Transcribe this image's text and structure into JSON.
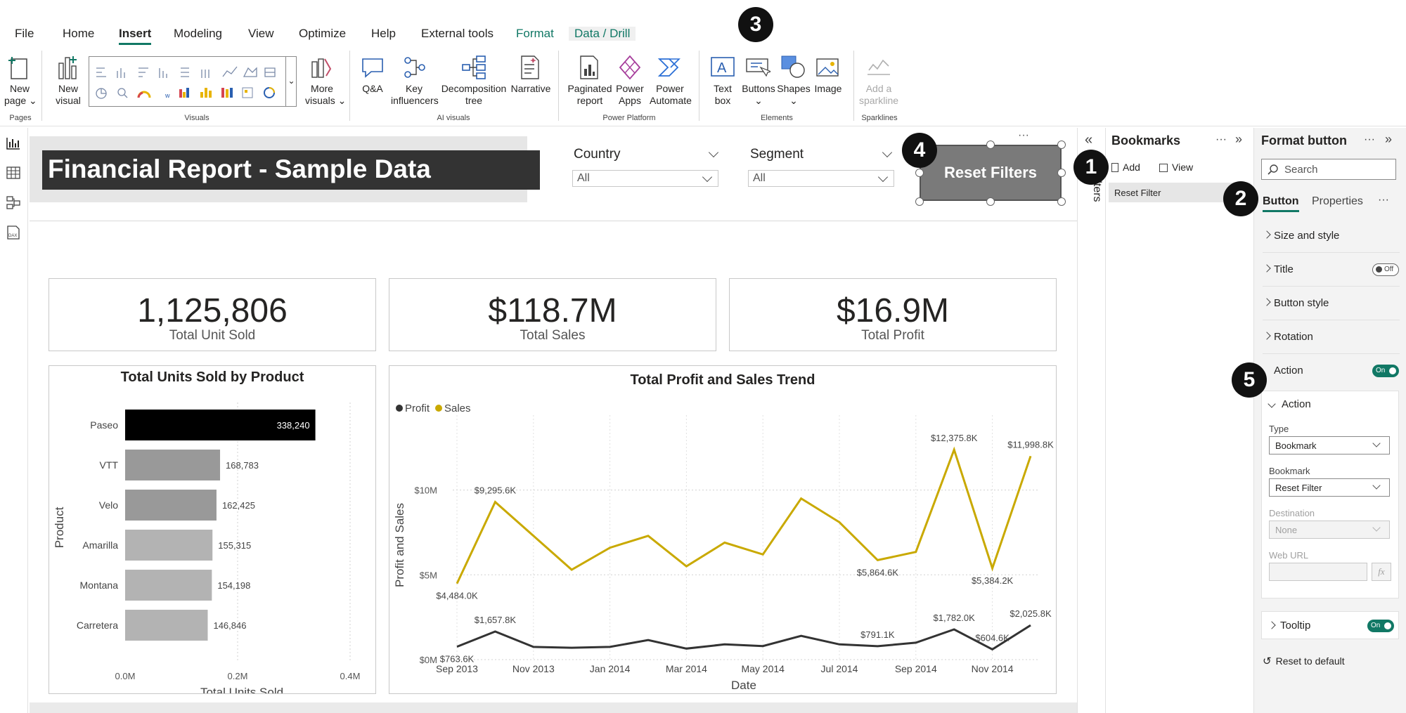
{
  "menu": {
    "file": "File",
    "home": "Home",
    "insert": "Insert",
    "modeling": "Modeling",
    "view": "View",
    "optimize": "Optimize",
    "help": "Help",
    "external_tools": "External tools",
    "format": "Format",
    "data_drill": "Data / Drill"
  },
  "ribbon": {
    "new_page": [
      "New",
      "page"
    ],
    "new_visual": [
      "New",
      "visual"
    ],
    "more_visuals": [
      "More",
      "visuals"
    ],
    "qa": "Q&A",
    "key_influencers": [
      "Key",
      "influencers"
    ],
    "decomposition_tree": [
      "Decomposition",
      "tree"
    ],
    "narrative": "Narrative",
    "paginated_report": [
      "Paginated",
      "report"
    ],
    "power_apps": [
      "Power",
      "Apps"
    ],
    "power_automate": [
      "Power",
      "Automate"
    ],
    "text_box": [
      "Text",
      "box"
    ],
    "buttons": "Buttons",
    "shapes": "Shapes",
    "image": "Image",
    "add_sparkline": [
      "Add a",
      "sparkline"
    ],
    "groups": {
      "pages": "Pages",
      "visuals": "Visuals",
      "ai_visuals": "AI visuals",
      "power_platform": "Power Platform",
      "elements": "Elements",
      "sparklines": "Sparklines"
    }
  },
  "report": {
    "title": "Financial Report - Sample Data",
    "slicers": [
      {
        "label": "Country",
        "value": "All"
      },
      {
        "label": "Segment",
        "value": "All"
      }
    ],
    "reset_button": "Reset Filters",
    "more": "···",
    "kpis": [
      {
        "value": "1,125,806",
        "label": "Total Unit Sold"
      },
      {
        "value": "$118.7M",
        "label": "Total Sales"
      },
      {
        "value": "$16.9M",
        "label": "Total Profit"
      }
    ]
  },
  "chart_data": [
    {
      "type": "bar",
      "title": "Total Units Sold by Product",
      "xlabel": "Total Units Sold",
      "ylabel": "Product",
      "categories": [
        "Paseo",
        "VTT",
        "Velo",
        "Amarilla",
        "Montana",
        "Carretera"
      ],
      "values": [
        338240,
        168783,
        162425,
        155315,
        154198,
        146846
      ],
      "value_labels": [
        "338,240",
        "168,783",
        "162,425",
        "155,315",
        "154,198",
        "146,846"
      ],
      "xticks": [
        "0.0M",
        "0.2M",
        "0.4M"
      ],
      "xlim": [
        0,
        400000
      ],
      "colors": [
        "#000000",
        "#999999",
        "#999999",
        "#b3b3b3",
        "#b3b3b3",
        "#b3b3b3"
      ]
    },
    {
      "type": "line",
      "title": "Total Profit and Sales Trend",
      "xlabel": "Date",
      "ylabel": "Profit and Sales",
      "legend": [
        "Profit",
        "Sales"
      ],
      "legend_position": "top-left",
      "x": [
        "Sep 2013",
        "Oct 2013",
        "Nov 2013",
        "Dec 2013",
        "Jan 2014",
        "Feb 2014",
        "Mar 2014",
        "Apr 2014",
        "May 2014",
        "Jun 2014",
        "Jul 2014",
        "Aug 2014",
        "Sep 2014",
        "Oct 2014",
        "Nov 2014",
        "Dec 2014"
      ],
      "xticks": [
        "Sep 2013",
        "Nov 2013",
        "Jan 2014",
        "Mar 2014",
        "May 2014",
        "Jul 2014",
        "Sep 2014",
        "Nov 2014"
      ],
      "yticks": [
        "$0M",
        "$5M",
        "$10M"
      ],
      "ylim": [
        0,
        14000000
      ],
      "series": [
        {
          "name": "Sales",
          "color": "#c9a900",
          "values": [
            4484000,
            9295600,
            7300000,
            5300000,
            6600000,
            7300000,
            5500000,
            6900000,
            6200000,
            9500000,
            8100000,
            5864600,
            6350000,
            12375800,
            5384200,
            11998800
          ],
          "labels": [
            {
              "i": 0,
              "text": "$4,484.0K",
              "pos": "below"
            },
            {
              "i": 1,
              "text": "$9,295.6K",
              "pos": "above"
            },
            {
              "i": 11,
              "text": "$5,864.6K",
              "pos": "below"
            },
            {
              "i": 13,
              "text": "$12,375.8K",
              "pos": "above"
            },
            {
              "i": 14,
              "text": "$5,384.2K",
              "pos": "below"
            },
            {
              "i": 15,
              "text": "$11,998.8K",
              "pos": "above"
            }
          ]
        },
        {
          "name": "Profit",
          "color": "#333333",
          "values": [
            763600,
            1657800,
            750000,
            700000,
            750000,
            1150000,
            650000,
            900000,
            800000,
            1400000,
            900000,
            791100,
            1000000,
            1782000,
            604600,
            2025800
          ],
          "labels": [
            {
              "i": 0,
              "text": "$763.6K",
              "pos": "below"
            },
            {
              "i": 1,
              "text": "$1,657.8K",
              "pos": "above"
            },
            {
              "i": 11,
              "text": "$791.1K",
              "pos": "above"
            },
            {
              "i": 13,
              "text": "$1,782.0K",
              "pos": "above"
            },
            {
              "i": 14,
              "text": "$604.6K",
              "pos": "above"
            },
            {
              "i": 15,
              "text": "$2,025.8K",
              "pos": "above"
            }
          ]
        }
      ]
    }
  ],
  "filters_tab": "Filters",
  "bookmarks": {
    "title": "Bookmarks",
    "add": "Add",
    "view": "View",
    "items": [
      "Reset Filter"
    ]
  },
  "format_pane": {
    "title": "Format button",
    "search_placeholder": "Search",
    "tabs": [
      "Button",
      "Properties"
    ],
    "sections": [
      {
        "label": "Size and style"
      },
      {
        "label": "Title",
        "toggle": "Off"
      },
      {
        "label": "Button style"
      },
      {
        "label": "Rotation"
      },
      {
        "label": "Action",
        "toggle": "On"
      }
    ],
    "action_card": {
      "header": "Action",
      "type_label": "Type",
      "type_value": "Bookmark",
      "bookmark_label": "Bookmark",
      "bookmark_value": "Reset Filter",
      "destination_label": "Destination",
      "destination_value": "None",
      "web_url_label": "Web URL",
      "fx": "fx"
    },
    "tooltip": {
      "label": "Tooltip",
      "toggle": "On"
    },
    "reset": "Reset to default"
  },
  "callouts": [
    "1",
    "2",
    "3",
    "4",
    "5"
  ],
  "accent": "#117865"
}
